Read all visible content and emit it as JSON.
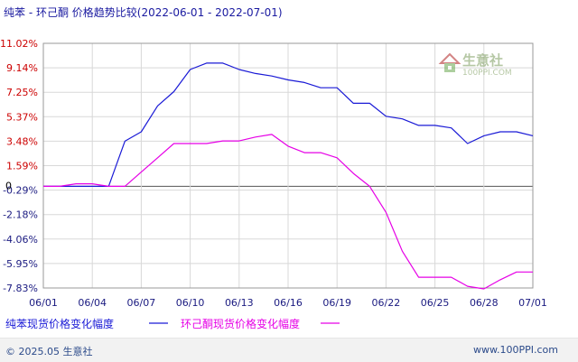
{
  "header": {
    "title": "纯苯 - 环己酮 价格趋势比较",
    "date_range": "(2022-06-01 - 2022-07-01)"
  },
  "watermark": {
    "name": "生意社",
    "url": "100PPI.COM"
  },
  "footer": {
    "copyright": "© 2025.05 生意社",
    "site": "www.100PPI.com"
  },
  "colors": {
    "series1": "#1a1ad6",
    "series2": "#e600e6",
    "positive_tick": "#cc0000",
    "negative_tick": "#1a1a80",
    "zero_tick": "#000000",
    "grid": "#d8d8d8"
  },
  "chart_data": {
    "type": "line",
    "title": "纯苯 - 环己酮 价格趋势比较",
    "date_range": "(2022-06-01 - 2022-07-01)",
    "x_tick_labels": [
      "06/01",
      "06/04",
      "06/07",
      "06/10",
      "06/13",
      "06/16",
      "06/19",
      "06/22",
      "06/25",
      "06/28",
      "07/01"
    ],
    "y_tick_labels": [
      "11.02%",
      "9.14%",
      "7.25%",
      "5.37%",
      "3.48%",
      "1.59%",
      "-0.29%",
      "-2.18%",
      "-4.06%",
      "-5.95%",
      "-7.83%"
    ],
    "zero_label": "0",
    "ylim": [
      -7.83,
      11.02
    ],
    "grid": true,
    "legend_position": "bottom",
    "x": [
      "06/01",
      "06/02",
      "06/03",
      "06/04",
      "06/05",
      "06/06",
      "06/07",
      "06/08",
      "06/09",
      "06/10",
      "06/11",
      "06/12",
      "06/13",
      "06/14",
      "06/15",
      "06/16",
      "06/17",
      "06/18",
      "06/19",
      "06/20",
      "06/21",
      "06/22",
      "06/23",
      "06/24",
      "06/25",
      "06/26",
      "06/27",
      "06/28",
      "06/29",
      "06/30",
      "07/01"
    ],
    "series": [
      {
        "name": "纯苯现货价格变化幅度",
        "values": [
          0,
          0,
          0,
          0,
          0,
          3.48,
          4.2,
          6.2,
          7.3,
          9.0,
          9.5,
          9.5,
          9.0,
          8.7,
          8.5,
          8.2,
          8.0,
          7.6,
          7.6,
          6.4,
          6.4,
          5.4,
          5.2,
          4.7,
          4.7,
          4.5,
          3.3,
          3.9,
          4.2,
          4.2,
          3.9
        ]
      },
      {
        "name": "环己酮现货价格变化幅度",
        "values": [
          0,
          0,
          0.2,
          0.2,
          0,
          0,
          1.1,
          2.2,
          3.3,
          3.3,
          3.3,
          3.5,
          3.5,
          3.8,
          4.0,
          3.1,
          2.6,
          2.6,
          2.2,
          1.0,
          0,
          -2.0,
          -5.0,
          -7.0,
          -7.0,
          -7.0,
          -7.7,
          -7.9,
          -7.2,
          -6.6,
          -6.6
        ]
      }
    ]
  }
}
